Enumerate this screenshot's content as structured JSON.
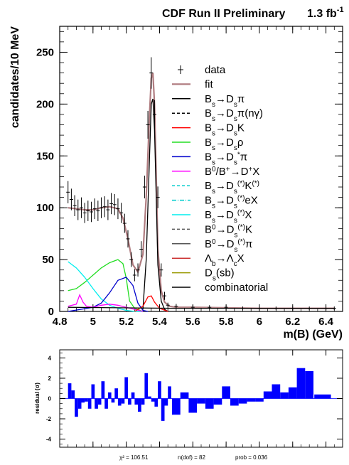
{
  "header": {
    "title": "CDF Run II Preliminary",
    "lumi": "1.3 fb",
    "lumi_sup": "-1"
  },
  "chart_data": [
    {
      "type": "line",
      "xlabel": "m(B) (GeV)",
      "ylabel": "candidates/10 MeV",
      "xlim": [
        4.8,
        6.5
      ],
      "ylim": [
        0,
        275
      ],
      "xticks": [
        "4.8",
        "5",
        "5.2",
        "5.4",
        "5.6",
        "5.8",
        "6",
        "6.2",
        "6.4"
      ],
      "yticks": [
        "0",
        "50",
        "100",
        "150",
        "200",
        "250"
      ],
      "legend_position": "right",
      "legend": [
        {
          "key": "data",
          "label": [
            {
              "t": "data"
            }
          ],
          "style": "marker",
          "color": "#000000"
        },
        {
          "key": "fit",
          "label": [
            {
              "t": "fit"
            }
          ],
          "style": "solid",
          "color": "#b07c80"
        },
        {
          "key": "bs_dspi",
          "label": [
            {
              "t": "B"
            },
            {
              "sub": "s"
            },
            {
              "t": "→D"
            },
            {
              "sub": "s"
            },
            {
              "t": "π"
            }
          ],
          "style": "solid",
          "color": "#000000"
        },
        {
          "key": "bs_dspi_ng",
          "label": [
            {
              "t": "B"
            },
            {
              "sub": "s"
            },
            {
              "t": "→D"
            },
            {
              "sub": "s"
            },
            {
              "t": "π(nγ)"
            }
          ],
          "style": "dash",
          "color": "#000000"
        },
        {
          "key": "bs_dsk",
          "label": [
            {
              "t": "B"
            },
            {
              "sub": "s"
            },
            {
              "t": "→D"
            },
            {
              "sub": "s"
            },
            {
              "t": "K"
            }
          ],
          "style": "solid",
          "color": "#ff0000"
        },
        {
          "key": "bs_dsrho",
          "label": [
            {
              "t": "B"
            },
            {
              "sub": "s"
            },
            {
              "t": "→D"
            },
            {
              "sub": "s"
            },
            {
              "t": "ρ"
            }
          ],
          "style": "solid",
          "color": "#22dd22"
        },
        {
          "key": "bs_dsstarpi",
          "label": [
            {
              "t": "B"
            },
            {
              "sub": "s"
            },
            {
              "t": "→D"
            },
            {
              "sub": "s"
            },
            {
              "sup": "*"
            },
            {
              "t": "π"
            }
          ],
          "style": "solid",
          "color": "#0000cc"
        },
        {
          "key": "b0_dx",
          "label": [
            {
              "t": "B"
            },
            {
              "sup": "0"
            },
            {
              "t": "/B"
            },
            {
              "sup": "+"
            },
            {
              "t": "→D"
            },
            {
              "sup": "+"
            },
            {
              "t": "X"
            }
          ],
          "style": "solid",
          "color": "#ff00ff"
        },
        {
          "key": "bs_dsk_star",
          "label": [
            {
              "t": "B"
            },
            {
              "sub": "s"
            },
            {
              "t": "→D"
            },
            {
              "sub": "s"
            },
            {
              "sup": "(*)"
            },
            {
              "t": "K"
            },
            {
              "sup": "(*)"
            }
          ],
          "style": "dash",
          "color": "#00cccc"
        },
        {
          "key": "bs_dsex",
          "label": [
            {
              "t": "B"
            },
            {
              "sub": "s"
            },
            {
              "t": "→D"
            },
            {
              "sub": "s"
            },
            {
              "sup": "(*)"
            },
            {
              "t": "eX"
            }
          ],
          "style": "dashdot",
          "color": "#00cccc"
        },
        {
          "key": "bs_dsx",
          "label": [
            {
              "t": "B"
            },
            {
              "sub": "s"
            },
            {
              "t": "→D"
            },
            {
              "sub": "s"
            },
            {
              "sup": "(*)"
            },
            {
              "t": "X"
            }
          ],
          "style": "solid",
          "color": "#00eeee"
        },
        {
          "key": "b0_dsk",
          "label": [
            {
              "t": "B"
            },
            {
              "sup": "0"
            },
            {
              "t": "→D"
            },
            {
              "sub": "s"
            },
            {
              "sup": "(*)"
            },
            {
              "t": "K"
            }
          ],
          "style": "dash",
          "color": "#555555"
        },
        {
          "key": "b0_dspi",
          "label": [
            {
              "t": "B"
            },
            {
              "sup": "0"
            },
            {
              "t": "→D"
            },
            {
              "sub": "s"
            },
            {
              "sup": "(*)"
            },
            {
              "t": "π"
            }
          ],
          "style": "solid",
          "color": "#555555"
        },
        {
          "key": "lb_lcx",
          "label": [
            {
              "t": "Λ"
            },
            {
              "sub": "b"
            },
            {
              "t": "→Λ"
            },
            {
              "sub": "c"
            },
            {
              "t": "X"
            }
          ],
          "style": "solid",
          "color": "#cc3333"
        },
        {
          "key": "ds_sb",
          "label": [
            {
              "t": "D"
            },
            {
              "sub": "s"
            },
            {
              "t": "(sb)"
            }
          ],
          "style": "solid",
          "color": "#999900"
        },
        {
          "key": "combinatorial",
          "label": [
            {
              "t": "combinatorial"
            }
          ],
          "style": "solid",
          "color": "#000000"
        }
      ],
      "series": [
        {
          "key": "data",
          "x": [
            4.85,
            4.87,
            4.89,
            4.91,
            4.93,
            4.95,
            4.97,
            4.99,
            5.01,
            5.03,
            5.05,
            5.07,
            5.09,
            5.11,
            5.13,
            5.15,
            5.17,
            5.19,
            5.21,
            5.23,
            5.25,
            5.27,
            5.29,
            5.31,
            5.33,
            5.35,
            5.37,
            5.39,
            5.41,
            5.43,
            5.45,
            5.5,
            5.6,
            5.7,
            5.8,
            5.9,
            6.0,
            6.1,
            6.2,
            6.3,
            6.4,
            6.45
          ],
          "y": [
            115,
            108,
            102,
            98,
            100,
            95,
            97,
            96,
            99,
            97,
            100,
            101,
            98,
            104,
            103,
            99,
            95,
            85,
            70,
            50,
            35,
            40,
            60,
            120,
            180,
            230,
            190,
            110,
            40,
            15,
            6,
            5,
            4,
            4,
            4,
            3,
            3,
            3,
            3,
            3,
            3,
            3
          ]
        },
        {
          "key": "fit",
          "x": [
            4.85,
            4.9,
            4.95,
            5.0,
            5.05,
            5.1,
            5.15,
            5.18,
            5.21,
            5.24,
            5.27,
            5.3,
            5.32,
            5.34,
            5.35,
            5.36,
            5.37,
            5.38,
            5.39,
            5.41,
            5.43,
            5.46,
            5.5,
            5.6,
            6.0,
            6.45
          ],
          "y": [
            100,
            99,
            98,
            98,
            100,
            101,
            99,
            90,
            70,
            45,
            38,
            55,
            110,
            190,
            225,
            230,
            200,
            130,
            60,
            20,
            9,
            5,
            4,
            4,
            3,
            3
          ]
        },
        {
          "key": "bs_dspi",
          "x": [
            5.3,
            5.32,
            5.34,
            5.35,
            5.36,
            5.37,
            5.38,
            5.39,
            5.41,
            5.43,
            5.45
          ],
          "y": [
            2,
            50,
            150,
            200,
            205,
            175,
            110,
            45,
            10,
            2,
            0
          ]
        },
        {
          "key": "bs_dsrho",
          "x": [
            4.85,
            4.9,
            4.95,
            5.0,
            5.05,
            5.1,
            5.15,
            5.18,
            5.2,
            5.22,
            5.25,
            5.3
          ],
          "y": [
            20,
            22,
            28,
            35,
            42,
            47,
            50,
            46,
            32,
            10,
            3,
            0
          ]
        },
        {
          "key": "bs_dsx",
          "x": [
            4.85,
            4.9,
            4.95,
            5.0,
            5.05,
            5.1,
            5.15,
            5.2,
            5.25,
            5.3
          ],
          "y": [
            48,
            42,
            33,
            22,
            12,
            6,
            3,
            1,
            0,
            0
          ]
        },
        {
          "key": "bs_dsstarpi",
          "x": [
            4.85,
            5.0,
            5.05,
            5.1,
            5.15,
            5.2,
            5.24,
            5.27,
            5.3,
            5.33
          ],
          "y": [
            0,
            4,
            8,
            18,
            30,
            33,
            25,
            8,
            1,
            0
          ]
        },
        {
          "key": "b0_dx",
          "x": [
            4.85,
            4.9,
            4.92,
            4.94,
            4.96,
            5.0,
            5.05,
            5.1,
            5.15,
            5.2,
            5.25,
            5.3
          ],
          "y": [
            5,
            7,
            16,
            9,
            5,
            4,
            6,
            7,
            6,
            4,
            2,
            0
          ]
        },
        {
          "key": "bs_dsk",
          "x": [
            5.25,
            5.3,
            5.33,
            5.35,
            5.37,
            5.4,
            5.45
          ],
          "y": [
            0,
            5,
            14,
            15,
            9,
            3,
            0
          ]
        },
        {
          "key": "combinatorial",
          "x": [
            4.85,
            5.5,
            6.0,
            6.45
          ],
          "y": [
            4,
            3,
            3,
            3
          ]
        }
      ]
    },
    {
      "type": "bar",
      "ylabel": "residual (σ)",
      "ylim": [
        -4.8,
        4.8
      ],
      "yticks": [
        "-4",
        "-2",
        "0",
        "2",
        "4"
      ],
      "x": [
        4.86,
        4.88,
        4.9,
        4.92,
        4.94,
        4.96,
        4.98,
        5.0,
        5.02,
        5.04,
        5.06,
        5.08,
        5.1,
        5.12,
        5.14,
        5.16,
        5.18,
        5.2,
        5.22,
        5.24,
        5.26,
        5.28,
        5.3,
        5.32,
        5.34,
        5.36,
        5.38,
        5.4,
        5.42,
        5.44,
        5.46,
        5.5,
        5.55,
        5.6,
        5.65,
        5.7,
        5.75,
        5.8,
        5.85,
        5.9,
        5.95,
        6.0,
        6.05,
        6.1,
        6.15,
        6.2,
        6.25,
        6.3,
        6.38
      ],
      "values": [
        1.5,
        0.8,
        -1.8,
        -1.0,
        -0.4,
        -0.3,
        -1.0,
        1.4,
        -1.0,
        -0.6,
        1.7,
        -1.0,
        0.6,
        -0.4,
        1.0,
        -0.7,
        -0.5,
        2.1,
        -0.6,
        0.6,
        -0.6,
        -1.3,
        -0.6,
        2.5,
        0.2,
        -0.3,
        -0.8,
        1.7,
        -2.2,
        -0.7,
        1.2,
        -1.6,
        0.6,
        -1.4,
        -0.5,
        -1.0,
        -0.6,
        1.2,
        -0.7,
        -0.5,
        -0.3,
        -0.3,
        0.7,
        1.4,
        0.6,
        1.1,
        3.0,
        2.7,
        0.4
      ],
      "width": [
        0.02,
        0.02,
        0.02,
        0.02,
        0.02,
        0.02,
        0.02,
        0.02,
        0.02,
        0.02,
        0.02,
        0.02,
        0.02,
        0.02,
        0.02,
        0.02,
        0.02,
        0.02,
        0.02,
        0.02,
        0.02,
        0.02,
        0.02,
        0.02,
        0.02,
        0.02,
        0.02,
        0.02,
        0.02,
        0.02,
        0.02,
        0.05,
        0.05,
        0.05,
        0.05,
        0.05,
        0.05,
        0.05,
        0.05,
        0.05,
        0.05,
        0.05,
        0.05,
        0.05,
        0.05,
        0.05,
        0.05,
        0.05,
        0.1
      ],
      "color": "#0000ff",
      "stats": {
        "chi2": "χ² = 106.51",
        "ndof": "n(dof) = 82",
        "prob": "prob = 0.036"
      }
    }
  ]
}
